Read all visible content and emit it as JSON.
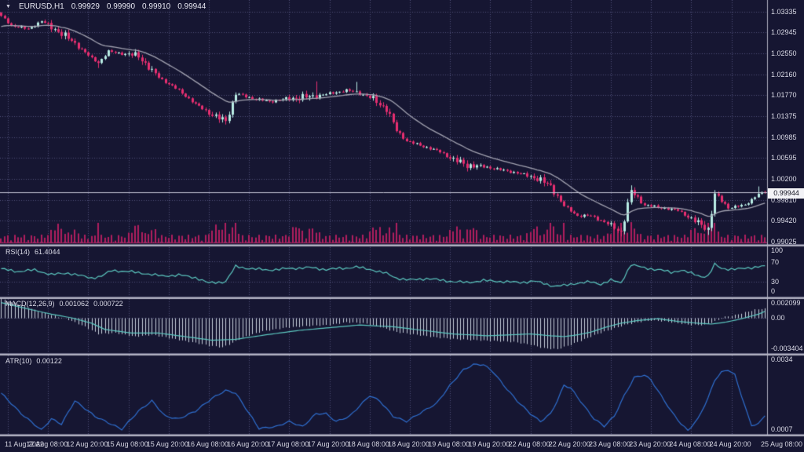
{
  "legend": {
    "dropdown_icon": "▼",
    "symbol": "EURUSD,H1",
    "open": "0.99929",
    "high": "0.99990",
    "low": "0.99910",
    "close": "0.99944"
  },
  "price_axis": {
    "labels": [
      "1.03335",
      "1.02945",
      "1.02550",
      "1.02160",
      "1.01770",
      "1.01375",
      "1.00985",
      "1.00595",
      "1.00200",
      "0.99810",
      "0.99420",
      "0.99025"
    ],
    "current_price": "0.99944"
  },
  "time_axis": {
    "labels": [
      "11 Aug 2022",
      "12 Aug 08:00",
      "12 Aug 20:00",
      "15 Aug 08:00",
      "15 Aug 20:00",
      "16 Aug 08:00",
      "16 Aug 20:00",
      "17 Aug 08:00",
      "17 Aug 20:00",
      "18 Aug 08:00",
      "18 Aug 20:00",
      "19 Aug 08:00",
      "19 Aug 20:00",
      "22 Aug 08:00",
      "22 Aug 20:00",
      "23 Aug 08:00",
      "23 Aug 20:00",
      "24 Aug 08:00",
      "24 Aug 20:00",
      "25 Aug 08:00"
    ]
  },
  "panels": {
    "rsi": {
      "name": "RSI(14)",
      "value": "61.4044",
      "axis_labels": [
        "100",
        "70",
        "30",
        "0"
      ]
    },
    "macd": {
      "name": "MACD(12,26,9)",
      "macd_value": "0.001062",
      "signal_value": "0.000722",
      "axis_labels": [
        "0.002099",
        "0.00",
        "-0.003404"
      ]
    },
    "atr": {
      "name": "ATR(10)",
      "value": "0.00122",
      "axis_labels": [
        "0.0034",
        "0.0007"
      ]
    }
  },
  "chart_data": {
    "type": "candlestick",
    "symbol": "EURUSD",
    "timeframe": "H1",
    "bars": 229,
    "ohlc_current": {
      "open": 0.99929,
      "high": 0.9999,
      "low": 0.9991,
      "close": 0.99944
    },
    "price_axis_values": [
      1.03335,
      1.02945,
      1.0255,
      1.0216,
      1.0177,
      1.01375,
      1.00985,
      1.00595,
      1.002,
      0.9981,
      0.9942,
      0.99025
    ],
    "close_waypoints": [
      [
        0,
        1.0325
      ],
      [
        3,
        1.0308
      ],
      [
        8,
        1.0301
      ],
      [
        12,
        1.0316
      ],
      [
        17,
        1.0297
      ],
      [
        22,
        1.0274
      ],
      [
        27,
        1.0246
      ],
      [
        29,
        1.0238
      ],
      [
        32,
        1.0259
      ],
      [
        36,
        1.0255
      ],
      [
        41,
        1.0251
      ],
      [
        45,
        1.0222
      ],
      [
        48,
        1.0206
      ],
      [
        53,
        1.0186
      ],
      [
        58,
        1.016
      ],
      [
        64,
        1.0136
      ],
      [
        67,
        1.0129
      ],
      [
        70,
        1.018
      ],
      [
        75,
        1.0171
      ],
      [
        80,
        1.0165
      ],
      [
        86,
        1.0171
      ],
      [
        92,
        1.0174
      ],
      [
        97,
        1.0179
      ],
      [
        103,
        1.0186
      ],
      [
        106,
        1.0183
      ],
      [
        111,
        1.017
      ],
      [
        115,
        1.0151
      ],
      [
        118,
        1.0111
      ],
      [
        121,
        1.0091
      ],
      [
        126,
        1.0081
      ],
      [
        131,
        1.0071
      ],
      [
        135,
        1.0056
      ],
      [
        139,
        1.0046
      ],
      [
        145,
        1.0042
      ],
      [
        150,
        1.0036
      ],
      [
        155,
        1.003
      ],
      [
        160,
        1.0021
      ],
      [
        164,
        1.0006
      ],
      [
        168,
        0.9969
      ],
      [
        172,
        0.9951
      ],
      [
        176,
        0.9951
      ],
      [
        181,
        0.9936
      ],
      [
        185,
        0.9921
      ],
      [
        188,
        0.9997
      ],
      [
        192,
        0.9971
      ],
      [
        197,
        0.9966
      ],
      [
        202,
        0.9961
      ],
      [
        207,
        0.9941
      ],
      [
        211,
        0.9926
      ],
      [
        213,
        0.9991
      ],
      [
        217,
        0.9966
      ],
      [
        222,
        0.9971
      ],
      [
        226,
        0.9992
      ],
      [
        228,
        0.99944
      ]
    ],
    "wick_spikes": [
      {
        "bar": 29,
        "low": 1.0228
      },
      {
        "bar": 67,
        "low": 1.0122
      },
      {
        "bar": 94,
        "high": 1.0203
      },
      {
        "bar": 106,
        "high": 1.0202
      },
      {
        "bar": 185,
        "low": 0.9912
      },
      {
        "bar": 188,
        "high": 1.0008
      },
      {
        "bar": 211,
        "low": 0.9915
      },
      {
        "bar": 213,
        "high": 0.9999
      },
      {
        "bar": 226,
        "high": 1.0006
      }
    ],
    "volume_spike_bars": [
      29,
      67,
      70,
      118,
      164,
      168,
      185,
      188,
      211,
      213
    ],
    "ma_period": 21,
    "indicators": {
      "rsi": {
        "period": 14,
        "current": 61.4044,
        "levels": [
          100,
          70,
          30,
          0
        ],
        "waypoints": [
          [
            0,
            55
          ],
          [
            5,
            50
          ],
          [
            10,
            53
          ],
          [
            15,
            44
          ],
          [
            20,
            47
          ],
          [
            27,
            37
          ],
          [
            30,
            41
          ],
          [
            33,
            52
          ],
          [
            38,
            50
          ],
          [
            43,
            46
          ],
          [
            48,
            41
          ],
          [
            53,
            43
          ],
          [
            58,
            38
          ],
          [
            62,
            27
          ],
          [
            67,
            30
          ],
          [
            70,
            60
          ],
          [
            74,
            56
          ],
          [
            80,
            53
          ],
          [
            86,
            56
          ],
          [
            92,
            58
          ],
          [
            97,
            54
          ],
          [
            103,
            57
          ],
          [
            106,
            59
          ],
          [
            111,
            53
          ],
          [
            115,
            46
          ],
          [
            118,
            37
          ],
          [
            122,
            33
          ],
          [
            127,
            36
          ],
          [
            131,
            33
          ],
          [
            135,
            30
          ],
          [
            139,
            28
          ],
          [
            144,
            32
          ],
          [
            150,
            30
          ],
          [
            155,
            28
          ],
          [
            159,
            31
          ],
          [
            162,
            26
          ],
          [
            165,
            21
          ],
          [
            168,
            22
          ],
          [
            172,
            27
          ],
          [
            176,
            29
          ],
          [
            179,
            25
          ],
          [
            182,
            33
          ],
          [
            185,
            27
          ],
          [
            188,
            64
          ],
          [
            192,
            57
          ],
          [
            197,
            53
          ],
          [
            200,
            48
          ],
          [
            203,
            53
          ],
          [
            207,
            44
          ],
          [
            209,
            40
          ],
          [
            211,
            41
          ],
          [
            213,
            64
          ],
          [
            215,
            56
          ],
          [
            217,
            55
          ],
          [
            220,
            55
          ],
          [
            222,
            56
          ],
          [
            224,
            58
          ],
          [
            226,
            60
          ],
          [
            228,
            61.4
          ]
        ]
      },
      "macd": {
        "fast": 12,
        "slow": 26,
        "signal": 9,
        "current_macd": 0.001062,
        "current_signal": 0.000722,
        "axis_max": 0.002099,
        "axis_min": -0.003404,
        "hist_waypoints": [
          [
            0,
            0.0021
          ],
          [
            6,
            0.0014
          ],
          [
            12,
            0.0006
          ],
          [
            17,
            0.0001
          ],
          [
            20,
            -0.0002
          ],
          [
            25,
            -0.001
          ],
          [
            29,
            -0.0018
          ],
          [
            34,
            -0.0017
          ],
          [
            40,
            -0.0021
          ],
          [
            45,
            -0.0019
          ],
          [
            52,
            -0.0024
          ],
          [
            58,
            -0.0028
          ],
          [
            62,
            -0.0031
          ],
          [
            66,
            -0.0033
          ],
          [
            69,
            -0.0028
          ],
          [
            72,
            -0.0022
          ],
          [
            78,
            -0.0015
          ],
          [
            85,
            -0.0011
          ],
          [
            92,
            -0.0009
          ],
          [
            98,
            -0.0008
          ],
          [
            103,
            -0.0005
          ],
          [
            108,
            -0.0006
          ],
          [
            113,
            -0.001
          ],
          [
            118,
            -0.0016
          ],
          [
            124,
            -0.0019
          ],
          [
            130,
            -0.0022
          ],
          [
            136,
            -0.0024
          ],
          [
            142,
            -0.0025
          ],
          [
            148,
            -0.0026
          ],
          [
            153,
            -0.0027
          ],
          [
            158,
            -0.003
          ],
          [
            162,
            -0.0034
          ],
          [
            166,
            -0.0035
          ],
          [
            170,
            -0.003
          ],
          [
            174,
            -0.0024
          ],
          [
            178,
            -0.0018
          ],
          [
            182,
            -0.0013
          ],
          [
            186,
            -0.0008
          ],
          [
            190,
            -0.0005
          ],
          [
            194,
            -0.0003
          ],
          [
            198,
            -0.0004
          ],
          [
            202,
            -0.0006
          ],
          [
            206,
            -0.0008
          ],
          [
            210,
            -0.0008
          ],
          [
            213,
            -0.0004
          ],
          [
            216,
            0.0001
          ],
          [
            219,
            0.0003
          ],
          [
            222,
            0.0006
          ],
          [
            225,
            0.0009
          ],
          [
            228,
            0.001062
          ]
        ],
        "signal_waypoints": [
          [
            0,
            0.0017
          ],
          [
            8,
            0.001
          ],
          [
            15,
            0.0004
          ],
          [
            21,
            0.0
          ],
          [
            27,
            -0.0006
          ],
          [
            31,
            -0.0013
          ],
          [
            39,
            -0.0017
          ],
          [
            47,
            -0.0017
          ],
          [
            55,
            -0.0021
          ],
          [
            63,
            -0.0025
          ],
          [
            70,
            -0.0024
          ],
          [
            79,
            -0.0019
          ],
          [
            89,
            -0.0014
          ],
          [
            98,
            -0.0011
          ],
          [
            107,
            -0.0008
          ],
          [
            117,
            -0.001
          ],
          [
            126,
            -0.0014
          ],
          [
            135,
            -0.0018
          ],
          [
            145,
            -0.002
          ],
          [
            152,
            -0.0019
          ],
          [
            158,
            -0.0018
          ],
          [
            164,
            -0.002
          ],
          [
            168,
            -0.0021
          ],
          [
            172,
            -0.0019
          ],
          [
            176,
            -0.0016
          ],
          [
            180,
            -0.0011
          ],
          [
            185,
            -0.0006
          ],
          [
            190,
            -0.0003
          ],
          [
            196,
            -0.0001
          ],
          [
            202,
            -0.0004
          ],
          [
            208,
            -0.0006
          ],
          [
            212,
            -0.0007
          ],
          [
            216,
            -0.0005
          ],
          [
            220,
            -0.0002
          ],
          [
            223,
            0.0001
          ],
          [
            226,
            0.0004
          ],
          [
            228,
            0.000722
          ]
        ]
      },
      "atr": {
        "period": 10,
        "current": 0.00122,
        "axis_max": 0.0034,
        "axis_min": 0.0007,
        "waypoints": [
          [
            0,
            0.0021
          ],
          [
            6,
            0.0013
          ],
          [
            12,
            0.00067
          ],
          [
            15,
            0.0011
          ],
          [
            18,
            0.0009
          ],
          [
            22,
            0.0018
          ],
          [
            28,
            0.0012
          ],
          [
            36,
            0.0007
          ],
          [
            41,
            0.0014
          ],
          [
            45,
            0.0018
          ],
          [
            49,
            0.0012
          ],
          [
            53,
            0.0011
          ],
          [
            58,
            0.0014
          ],
          [
            63,
            0.0019
          ],
          [
            67,
            0.0022
          ],
          [
            70,
            0.0021
          ],
          [
            77,
            0.00073
          ],
          [
            82,
            0.0008
          ],
          [
            86,
            0.001
          ],
          [
            90,
            0.0008
          ],
          [
            94,
            0.0013
          ],
          [
            97,
            0.0013
          ],
          [
            100,
            0.001
          ],
          [
            104,
            0.0012
          ],
          [
            110,
            0.002
          ],
          [
            113,
            0.0018
          ],
          [
            117,
            0.0012
          ],
          [
            121,
            0.001
          ],
          [
            126,
            0.0014
          ],
          [
            130,
            0.0017
          ],
          [
            134,
            0.0024
          ],
          [
            138,
            0.003
          ],
          [
            141,
            0.0032
          ],
          [
            144,
            0.0032
          ],
          [
            147,
            0.0029
          ],
          [
            150,
            0.0024
          ],
          [
            154,
            0.0018
          ],
          [
            158,
            0.0013
          ],
          [
            161,
            0.001
          ],
          [
            164,
            0.0013
          ],
          [
            166,
            0.0018
          ],
          [
            168,
            0.0024
          ],
          [
            170,
            0.0023
          ],
          [
            174,
            0.0016
          ],
          [
            177,
            0.0011
          ],
          [
            180,
            0.00082
          ],
          [
            183,
            0.0012
          ],
          [
            186,
            0.002
          ],
          [
            189,
            0.0027
          ],
          [
            192,
            0.0028
          ],
          [
            194,
            0.0026
          ],
          [
            197,
            0.002
          ],
          [
            200,
            0.0014
          ],
          [
            203,
            0.0009
          ],
          [
            205,
            0.00065
          ],
          [
            208,
            0.0011
          ],
          [
            211,
            0.0019
          ],
          [
            213,
            0.0026
          ],
          [
            215,
            0.0029
          ],
          [
            217,
            0.003
          ],
          [
            219,
            0.0028
          ],
          [
            221,
            0.002
          ],
          [
            223,
            0.0012
          ],
          [
            224,
            0.00085
          ],
          [
            226,
            0.0009
          ],
          [
            228,
            0.00122
          ]
        ]
      }
    },
    "colors": {
      "background": "#161632",
      "grid": "#50507a",
      "bull": "#b8ece4",
      "bear": "#e62e70",
      "ma": "#a2a2b0",
      "volume": "#b01e5e",
      "rsi_line": "#5cc8c0",
      "macd_signal": "#5cc8c0",
      "macd_hist": "#c8d0dc",
      "atr_line": "#2f6fd0",
      "separator": "#b2b2c2",
      "axis_text": "#dcdce8",
      "current_price_line": "#c8c8d8",
      "price_tag_bg": "#f2f2f6"
    }
  }
}
